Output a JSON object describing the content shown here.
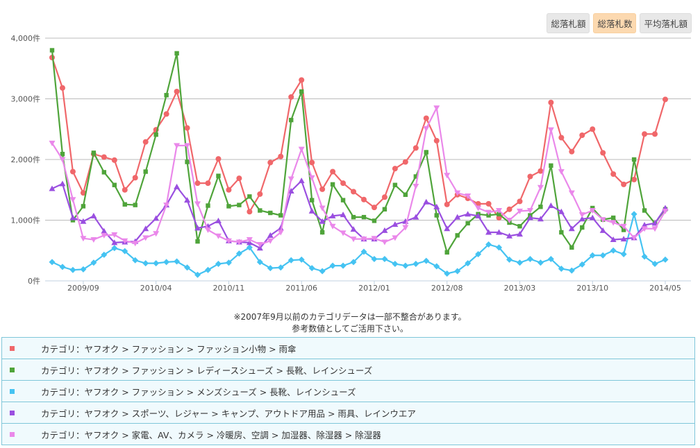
{
  "buttons": [
    {
      "label": "総落札額",
      "active": false
    },
    {
      "label": "総落札数",
      "active": true
    },
    {
      "label": "平均落札額",
      "active": false
    }
  ],
  "note": [
    "※2007年9月以前のカテゴリデータは一部不整合があります。",
    "参考数値としてご活用下さい。"
  ],
  "chart_data": {
    "type": "line",
    "ylim": [
      0,
      4000
    ],
    "yticks": [
      "0件",
      "1,000件",
      "2,000件",
      "3,000件",
      "4,000件"
    ],
    "ytick_values": [
      0,
      1000,
      2000,
      3000,
      4000
    ],
    "xtick_labels": [
      "2009/09",
      "2010/04",
      "2010/11",
      "2011/06",
      "2012/01",
      "2012/08",
      "2013/03",
      "2013/10",
      "2014/05"
    ],
    "grid": true,
    "legend": "bottom",
    "categories": [
      "2009/06",
      "2009/07",
      "2009/08",
      "2009/09",
      "2009/10",
      "2009/11",
      "2009/12",
      "2010/01",
      "2010/02",
      "2010/03",
      "2010/04",
      "2010/05",
      "2010/06",
      "2010/07",
      "2010/08",
      "2010/09",
      "2010/10",
      "2010/11",
      "2010/12",
      "2011/01",
      "2011/02",
      "2011/03",
      "2011/04",
      "2011/05",
      "2011/06",
      "2011/07",
      "2011/08",
      "2011/09",
      "2011/10",
      "2011/11",
      "2011/12",
      "2012/01",
      "2012/02",
      "2012/03",
      "2012/04",
      "2012/05",
      "2012/06",
      "2012/07",
      "2012/08",
      "2012/09",
      "2012/10",
      "2012/11",
      "2012/12",
      "2013/01",
      "2013/02",
      "2013/03",
      "2013/04",
      "2013/05",
      "2013/06",
      "2013/07",
      "2013/08",
      "2013/09",
      "2013/10",
      "2013/11",
      "2013/12",
      "2014/01",
      "2014/02",
      "2014/03",
      "2014/04",
      "2014/05"
    ],
    "series": [
      {
        "name": "カテゴリ：ヤフオク > ファッション > ファッション小物 > 雨傘",
        "color": "#f0676a",
        "marker": "circle",
        "values": [
          3680,
          3180,
          1800,
          1450,
          2090,
          2040,
          1990,
          1500,
          1700,
          2290,
          2490,
          2750,
          3120,
          2520,
          1610,
          1610,
          2010,
          1500,
          1690,
          1140,
          1430,
          1950,
          2050,
          3030,
          3310,
          1950,
          1510,
          1800,
          1610,
          1470,
          1340,
          1210,
          1380,
          1850,
          1960,
          2190,
          2680,
          2310,
          1260,
          1420,
          1360,
          1270,
          1270,
          1040,
          1180,
          1310,
          1720,
          1810,
          2940,
          2360,
          2130,
          2400,
          2500,
          2110,
          1760,
          1590,
          1670,
          2420,
          2420,
          2990
        ]
      },
      {
        "name": "カテゴリ：ヤフオク > ファッション > レディースシューズ > 長靴、レインシューズ",
        "color": "#4fa43a",
        "marker": "square",
        "values": [
          3800,
          2090,
          1000,
          1230,
          2110,
          1790,
          1580,
          1260,
          1250,
          1800,
          2410,
          3060,
          3750,
          1960,
          650,
          1240,
          1730,
          1230,
          1250,
          1390,
          1160,
          1120,
          1080,
          2650,
          3120,
          1330,
          800,
          1590,
          1330,
          1050,
          1050,
          990,
          1180,
          1580,
          1420,
          1720,
          2120,
          1080,
          470,
          750,
          950,
          1100,
          1080,
          1100,
          960,
          900,
          1080,
          1220,
          1900,
          800,
          550,
          880,
          1200,
          1010,
          1040,
          840,
          2000,
          1160,
          950,
          1180
        ]
      },
      {
        "name": "カテゴリ：ヤフオク > ファッション > メンズシューズ > 長靴、レインシューズ",
        "color": "#45c3f2",
        "marker": "diamond",
        "values": [
          310,
          230,
          180,
          190,
          300,
          430,
          540,
          490,
          340,
          290,
          290,
          310,
          320,
          220,
          100,
          180,
          280,
          300,
          450,
          550,
          310,
          210,
          220,
          340,
          350,
          210,
          160,
          250,
          250,
          310,
          480,
          360,
          360,
          280,
          250,
          280,
          330,
          240,
          120,
          160,
          290,
          440,
          600,
          550,
          350,
          300,
          360,
          300,
          360,
          200,
          170,
          270,
          420,
          420,
          500,
          440,
          1100,
          400,
          280,
          350
        ]
      },
      {
        "name": "カテゴリ：ヤフオク > スポーツ、レジャー > キャンプ、アウトドア用品 > 雨具、レインウエア",
        "color": "#9a4fe0",
        "marker": "triangle-up",
        "values": [
          1520,
          1600,
          1040,
          980,
          1070,
          820,
          630,
          640,
          650,
          860,
          1030,
          1250,
          1550,
          1330,
          870,
          900,
          990,
          660,
          640,
          630,
          540,
          750,
          870,
          1480,
          1650,
          1150,
          980,
          1070,
          1090,
          850,
          690,
          690,
          830,
          930,
          980,
          1050,
          1300,
          1220,
          860,
          1050,
          1100,
          1070,
          800,
          800,
          740,
          770,
          1040,
          1020,
          1240,
          1140,
          860,
          1020,
          1040,
          830,
          680,
          690,
          710,
          920,
          950,
          1200
        ]
      },
      {
        "name": "カテゴリ：ヤフオク > 家電、AV、カメラ > 冷暖房、空調 > 加湿器、除湿器 > 除湿器",
        "color": "#ea88ea",
        "marker": "triangle-down",
        "values": [
          2270,
          2000,
          1340,
          700,
          680,
          750,
          760,
          660,
          620,
          710,
          780,
          1250,
          2230,
          2230,
          1270,
          840,
          740,
          660,
          640,
          680,
          600,
          660,
          800,
          1680,
          2170,
          1700,
          1200,
          900,
          790,
          690,
          690,
          700,
          640,
          710,
          880,
          1560,
          2510,
          2850,
          1740,
          1450,
          1400,
          1200,
          1130,
          1160,
          1000,
          1150,
          1160,
          1540,
          2490,
          1800,
          1450,
          1090,
          1160,
          1010,
          960,
          900,
          710,
          860,
          860,
          1150
        ]
      }
    ]
  }
}
